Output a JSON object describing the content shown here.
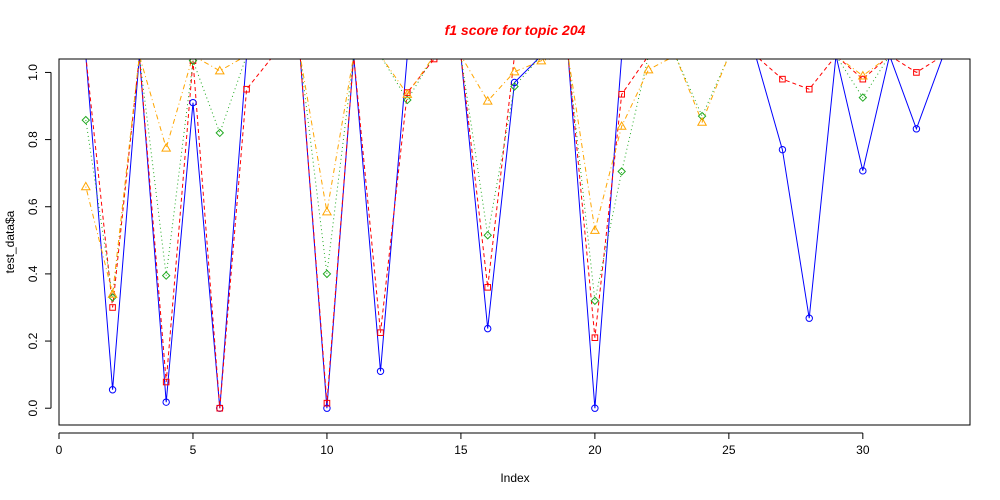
{
  "chart_data": {
    "type": "line",
    "title": "f1 score for topic 204",
    "title_color": "#ff0000",
    "xlabel": "Index",
    "ylabel": "test_data$a",
    "xlim": [
      0,
      34
    ],
    "ylim": [
      -0.05,
      1.04
    ],
    "xticks": [
      0,
      5,
      10,
      15,
      20,
      25,
      30
    ],
    "yticks": [
      0.0,
      0.2,
      0.4,
      0.6,
      0.8,
      1.0
    ],
    "xtick_labels": [
      "0",
      "5",
      "10",
      "15",
      "20",
      "25",
      "30"
    ],
    "ytick_labels": [
      "0.0",
      "0.2",
      "0.4",
      "0.6",
      "0.8",
      "1.0"
    ],
    "grid": false,
    "legend": false,
    "x": [
      1,
      2,
      3,
      4,
      5,
      6,
      7,
      8,
      9,
      10,
      11,
      12,
      13,
      14,
      15,
      16,
      17,
      18,
      19,
      20,
      21,
      22,
      23,
      24,
      25,
      26,
      27,
      28,
      29,
      30,
      31,
      32,
      33
    ],
    "series": [
      {
        "color": "#0000ff",
        "line_style": "solid",
        "marker": "circle",
        "values": [
          1.05,
          0.055,
          1.05,
          0.018,
          0.91,
          0.0,
          1.05,
          1.05,
          1.05,
          0.0,
          1.05,
          0.11,
          1.05,
          1.05,
          1.05,
          0.237,
          0.97,
          1.05,
          1.05,
          0.0,
          1.05,
          1.05,
          1.05,
          1.05,
          1.05,
          1.05,
          0.77,
          0.268,
          1.05,
          0.707,
          1.05,
          0.832,
          1.05
        ]
      },
      {
        "color": "#ff0000",
        "line_style": "dashed",
        "marker": "square",
        "values": [
          1.05,
          0.3,
          1.05,
          0.078,
          1.035,
          0.0,
          0.95,
          1.05,
          1.05,
          0.015,
          1.05,
          0.225,
          0.94,
          1.04,
          1.05,
          0.36,
          1.05,
          1.05,
          1.05,
          0.21,
          0.935,
          1.05,
          1.05,
          1.05,
          1.05,
          1.05,
          0.98,
          0.95,
          1.05,
          0.98,
          1.05,
          1.0,
          1.05
        ]
      },
      {
        "color": "#22aa22",
        "line_style": "dotted",
        "marker": "diamond",
        "values": [
          0.858,
          0.33,
          1.05,
          0.395,
          1.035,
          0.82,
          1.05,
          1.05,
          1.05,
          0.4,
          1.05,
          1.05,
          0.918,
          1.05,
          1.05,
          0.515,
          0.958,
          1.05,
          1.05,
          0.32,
          0.705,
          1.05,
          1.05,
          0.87,
          1.05,
          1.05,
          1.05,
          1.05,
          1.05,
          0.925,
          1.05,
          1.05,
          1.05
        ]
      },
      {
        "color": "#ffa500",
        "line_style": "dotdash",
        "marker": "triangle",
        "values": [
          0.66,
          0.34,
          1.05,
          0.775,
          1.05,
          1.005,
          1.05,
          1.05,
          1.05,
          0.585,
          1.05,
          1.05,
          0.935,
          1.05,
          1.05,
          0.915,
          1.002,
          1.035,
          1.05,
          0.53,
          0.84,
          1.008,
          1.05,
          0.852,
          1.05,
          1.05,
          1.05,
          1.05,
          1.05,
          0.99,
          1.05,
          1.05,
          1.05
        ]
      }
    ]
  }
}
